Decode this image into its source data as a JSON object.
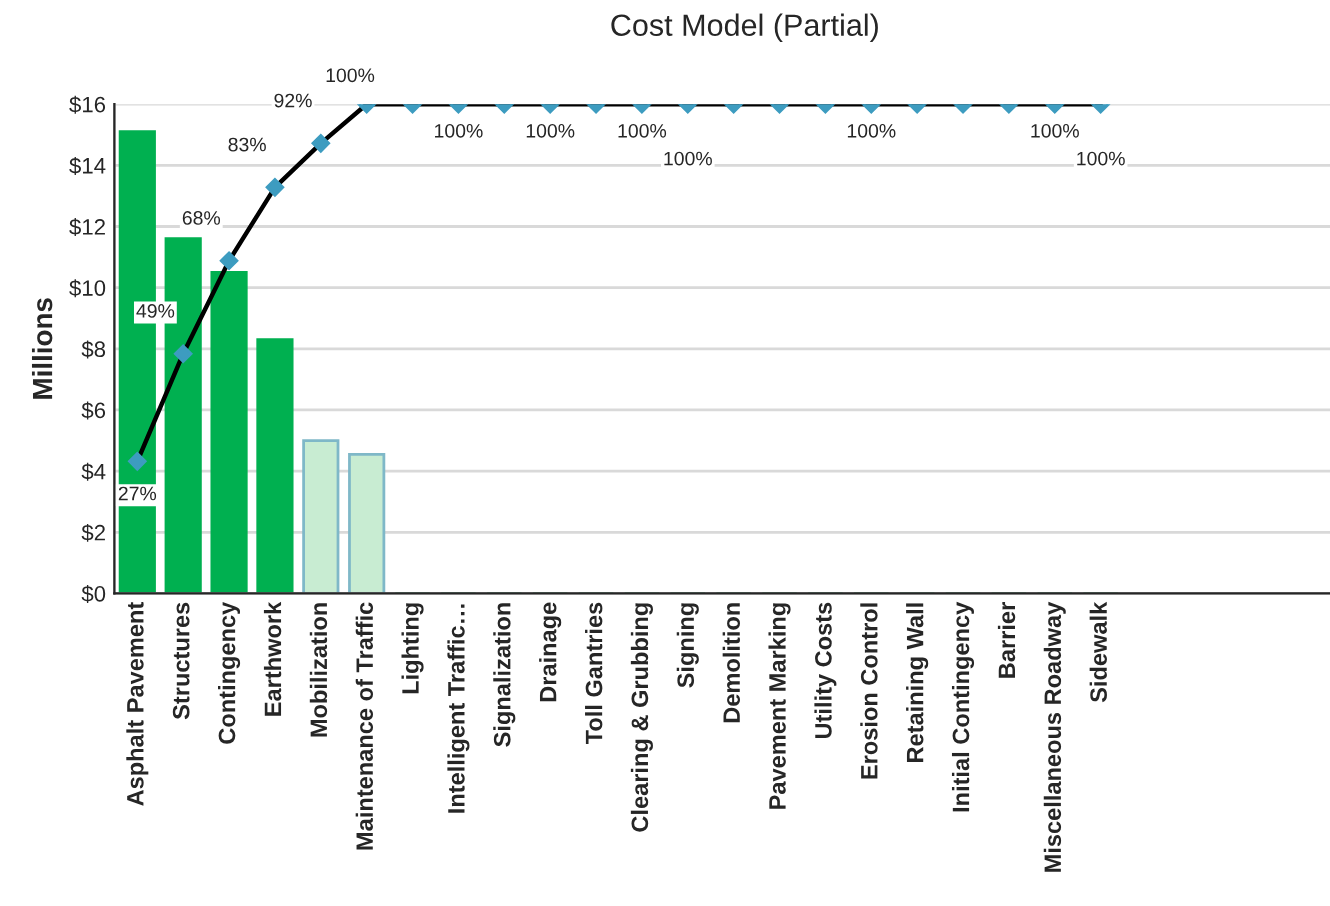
{
  "chart_data": {
    "type": "bar",
    "title": "Cost Model (Partial)",
    "ylabel": "Millions",
    "categories": [
      "Asphalt Pavement",
      "Structures",
      "Contingency",
      "Earthwork",
      "Mobilization",
      "Maintenance of Traffic",
      "Lighting",
      "Intelligent Traffic…",
      "Signalization",
      "Drainage",
      "Toll Gantries",
      "Clearing & Grubbing",
      "Signing",
      "Demolition",
      "Pavement Marking",
      "Utility Costs",
      "Erosion Control",
      "Retaining Wall",
      "Initial Contingency",
      "Barrier",
      "Miscellaneous Roadway",
      "Sidewalk"
    ],
    "series": [
      {
        "colors": [
          "#00b050",
          "#00b050",
          "#00b050",
          "#00b050",
          "#c8ecd2",
          "#c8ecd2",
          "#00b050",
          "#00b050",
          "#00b050",
          "#00b050",
          "#00b050",
          "#00b050",
          "#00b050",
          "#00b050",
          "#00b050",
          "#00b050",
          "#00b050",
          "#00b050",
          "#00b050",
          "#00b050",
          "#00b050",
          "#00b050"
        ],
        "values": [
          15.1,
          11.6,
          10.5,
          8.3,
          5.0,
          4.55,
          0,
          0,
          0,
          0,
          0,
          0,
          0,
          0,
          0,
          0,
          0,
          0,
          0,
          0,
          0,
          0
        ]
      },
      {
        "type": "line",
        "axis": "y2",
        "color": "#000000",
        "marker": "diamond",
        "values": [
          27,
          49,
          68,
          83,
          92,
          100,
          100,
          100,
          100,
          100,
          100,
          100,
          100,
          100,
          100,
          100,
          100,
          100,
          100,
          100,
          100,
          100
        ],
        "value_labels": [
          "27%",
          "49%",
          "68%",
          "83%",
          "92%",
          "100%",
          null,
          "100%",
          null,
          "100%",
          null,
          "100%",
          "100%",
          null,
          null,
          null,
          "100%",
          null,
          null,
          null,
          "100%",
          "100%"
        ]
      }
    ],
    "ylim": [
      0,
      16
    ],
    "yticks": [
      {
        "value": 0,
        "label": "$0"
      },
      {
        "value": 2,
        "label": "$2"
      },
      {
        "value": 4,
        "label": "$4"
      },
      {
        "value": 6,
        "label": "$6"
      },
      {
        "value": 8,
        "label": "$8"
      },
      {
        "value": 10,
        "label": "$10"
      },
      {
        "value": 12,
        "label": "$12"
      },
      {
        "value": 14,
        "label": "$14"
      },
      {
        "value": 16,
        "label": "$16"
      }
    ],
    "y2lim": [
      0,
      100
    ],
    "grid": "y",
    "legend": false
  }
}
